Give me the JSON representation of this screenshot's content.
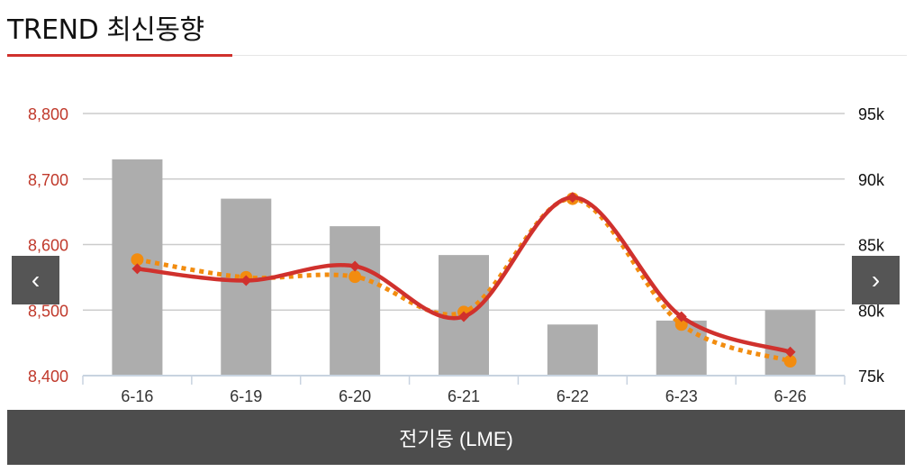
{
  "header": {
    "title": "TREND 최신동향"
  },
  "nav": {
    "prev_icon": "‹",
    "next_icon": "›"
  },
  "footer": {
    "label": "전기동 (LME)"
  },
  "colors": {
    "accent": "#d0312d",
    "bar": "#adadad",
    "dotted": "#f28c0f",
    "axis_left_text": "#c0392b",
    "grid": "#cccccc"
  },
  "chart_data": {
    "type": "bar+line",
    "categories": [
      "6-16",
      "6-19",
      "6-20",
      "6-21",
      "6-22",
      "6-23",
      "6-26"
    ],
    "bars": {
      "axis": "right",
      "values": [
        91500,
        88500,
        86400,
        84200,
        78900,
        79200,
        80000
      ]
    },
    "series": [
      {
        "style": "solid",
        "color": "#d0312d",
        "axis": "left",
        "values": [
          8563,
          8545,
          8567,
          8490,
          8672,
          8490,
          8436
        ]
      },
      {
        "style": "dotted",
        "color": "#f28c0f",
        "axis": "left",
        "values": [
          8577,
          8550,
          8551,
          8497,
          8670,
          8478,
          8422
        ]
      }
    ],
    "left_axis": {
      "ticks": [
        "8,800",
        "8,700",
        "8,600",
        "8,500",
        "8,400"
      ],
      "range": [
        8400,
        8800
      ]
    },
    "right_axis": {
      "ticks": [
        "95k",
        "90k",
        "85k",
        "80k",
        "75k"
      ],
      "range": [
        75000,
        95000
      ]
    },
    "grid": true
  }
}
